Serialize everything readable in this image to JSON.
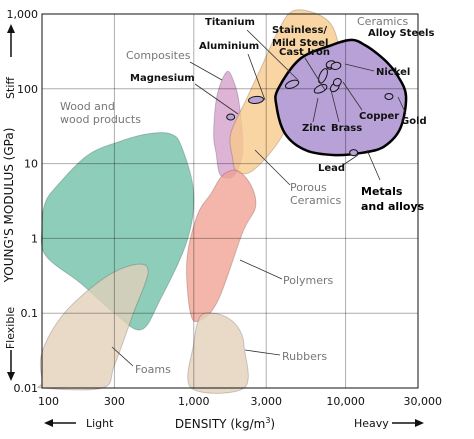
{
  "chart_data": {
    "type": "scatter",
    "title": "",
    "xlabel": "DENSITY (kg/m",
    "xlabel_sup": "3",
    "xlabel_close": ")",
    "ylabel": "YOUNG'S MODULUS (GPa)",
    "x_scale": "log",
    "y_scale": "log",
    "xlim": [
      100,
      30000
    ],
    "ylim": [
      0.01,
      1000
    ],
    "grid": true,
    "x_ticks": [
      {
        "value": 100,
        "label": "100"
      },
      {
        "value": 300,
        "label": "300"
      },
      {
        "value": 1000,
        "label": "1,000"
      },
      {
        "value": 3000,
        "label": "3,000"
      },
      {
        "value": 10000,
        "label": "10,000"
      },
      {
        "value": 30000,
        "label": "30,000"
      }
    ],
    "y_ticks": [
      {
        "value": 1000,
        "label": "1,000"
      },
      {
        "value": 100,
        "label": "100"
      },
      {
        "value": 10,
        "label": "10"
      },
      {
        "value": 1,
        "label": "1"
      },
      {
        "value": 0.1,
        "label": "0.1"
      },
      {
        "value": 0.01,
        "label": "0.01"
      }
    ],
    "axis_annotations": {
      "y_high": "Stiff",
      "y_low": "Flexible",
      "x_low": "Light",
      "x_high": "Heavy"
    },
    "regions": [
      {
        "name": "Wood and\nwood products",
        "color": "#6dbfa5",
        "points": [
          [
            100,
            1.5
          ],
          [
            105,
            3
          ],
          [
            125,
            5
          ],
          [
            200,
            13
          ],
          [
            330,
            20
          ],
          [
            500,
            25
          ],
          [
            700,
            25
          ],
          [
            830,
            17
          ],
          [
            1000,
            4
          ],
          [
            900,
            0.9
          ],
          [
            600,
            0.15
          ],
          [
            450,
            0.06
          ],
          [
            300,
            0.1
          ],
          [
            180,
            0.25
          ],
          [
            105,
            0.6
          ]
        ]
      },
      {
        "name": "Foams",
        "color": "#e3cfb8",
        "points": [
          [
            100,
            0.012
          ],
          [
            100,
            0.03
          ],
          [
            140,
            0.1
          ],
          [
            260,
            0.3
          ],
          [
            420,
            0.45
          ],
          [
            500,
            0.35
          ],
          [
            400,
            0.1
          ],
          [
            300,
            0.02
          ],
          [
            250,
            0.01
          ],
          [
            100,
            0.01
          ]
        ]
      },
      {
        "name": "Composites",
        "color": "#d39ecb",
        "points": [
          [
            1350,
            25
          ],
          [
            1420,
            80
          ],
          [
            1650,
            170
          ],
          [
            1850,
            120
          ],
          [
            2000,
            60
          ],
          [
            2100,
            15
          ],
          [
            1850,
            7
          ],
          [
            1500,
            7
          ],
          [
            1400,
            14
          ]
        ]
      },
      {
        "name": "Ceramics",
        "color": "#f7c98a",
        "points": [
          [
            1800,
            12
          ],
          [
            1750,
            25
          ],
          [
            2200,
            70
          ],
          [
            2800,
            200
          ],
          [
            3600,
            600
          ],
          [
            4500,
            1100
          ],
          [
            6500,
            1000
          ],
          [
            8300,
            650
          ],
          [
            8800,
            270
          ],
          [
            6000,
            150
          ],
          [
            4700,
            60
          ],
          [
            3900,
            25
          ],
          [
            3000,
            12
          ],
          [
            2300,
            7.5
          ],
          [
            1900,
            8
          ]
        ]
      },
      {
        "name": "Porous\nCeramics",
        "color": "#f7c98a",
        "label_only": true,
        "points": []
      },
      {
        "name": "Polymers",
        "color": "#f1a092",
        "points": [
          [
            1300,
            4
          ],
          [
            1050,
            2
          ],
          [
            900,
            0.5
          ],
          [
            950,
            0.1
          ],
          [
            1100,
            0.08
          ],
          [
            1450,
            0.15
          ],
          [
            2100,
            1.2
          ],
          [
            2550,
            2.6
          ],
          [
            2400,
            5
          ],
          [
            1950,
            8
          ],
          [
            1550,
            7
          ]
        ]
      },
      {
        "name": "Rubbers",
        "color": "#e3cfb8",
        "points": [
          [
            960,
            0.01
          ],
          [
            1000,
            0.04
          ],
          [
            1100,
            0.09
          ],
          [
            1350,
            0.1
          ],
          [
            1700,
            0.085
          ],
          [
            2000,
            0.06
          ],
          [
            2150,
            0.035
          ],
          [
            2150,
            0.01
          ]
        ]
      },
      {
        "name": "Metals\nand alloys",
        "color": "#b7a1d6",
        "points": [
          [
            3500,
            60
          ],
          [
            3600,
            100
          ],
          [
            5000,
            250
          ],
          [
            8000,
            380
          ],
          [
            11000,
            450
          ],
          [
            13500,
            380
          ],
          [
            16000,
            300
          ],
          [
            19000,
            220
          ],
          [
            22000,
            150
          ],
          [
            25000,
            80
          ],
          [
            23000,
            30
          ],
          [
            18000,
            17
          ],
          [
            13000,
            14
          ],
          [
            8500,
            13
          ],
          [
            5500,
            15
          ],
          [
            4000,
            25
          ]
        ]
      }
    ],
    "materials": [
      {
        "name": "Titanium",
        "points": [
          [
            4200,
            110
          ],
          [
            4700,
            120
          ]
        ]
      },
      {
        "name": "Aluminium",
        "points": [
          [
            2400,
            70
          ],
          [
            2750,
            72
          ]
        ]
      },
      {
        "name": "Magnesium",
        "points": [
          [
            1750,
            42
          ]
        ]
      },
      {
        "name": "Stainless/\nMild Steel",
        "points": [
          [
            7850,
            200
          ],
          [
            8000,
            210
          ]
        ]
      },
      {
        "name": "Cast Iron",
        "points": [
          [
            6900,
            130
          ],
          [
            7300,
            170
          ]
        ]
      },
      {
        "name": "Alloy Steels",
        "points": [
          [
            7800,
            210
          ],
          [
            8200,
            215
          ]
        ]
      },
      {
        "name": "Nickel",
        "points": [
          [
            8400,
            200
          ],
          [
            8900,
            205
          ]
        ]
      },
      {
        "name": "Zinc",
        "points": [
          [
            6500,
            95
          ],
          [
            7200,
            105
          ]
        ]
      },
      {
        "name": "Brass",
        "points": [
          [
            8300,
            100
          ],
          [
            8700,
            110
          ]
        ]
      },
      {
        "name": "Copper",
        "points": [
          [
            8700,
            120
          ],
          [
            8950,
            125
          ]
        ]
      },
      {
        "name": "Gold",
        "points": [
          [
            19300,
            79
          ]
        ]
      },
      {
        "name": "Lead",
        "points": [
          [
            11300,
            14
          ]
        ]
      }
    ]
  }
}
